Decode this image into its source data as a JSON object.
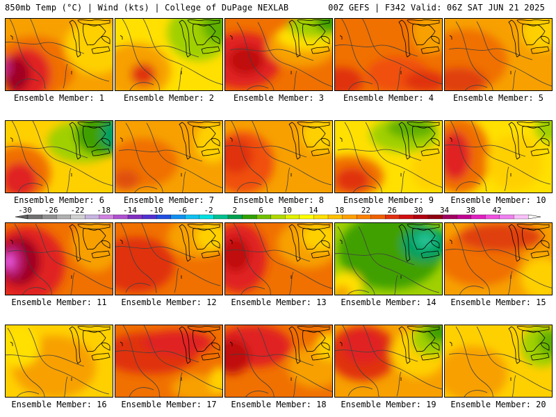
{
  "header": {
    "left": "850mb Temp (°C) | Wind (kts) | College of DuPage NEXLAB",
    "right": "00Z GEFS | F342 Valid: 06Z SAT JUN 21 2025"
  },
  "caption_prefix": "Ensemble Member:",
  "members": [
    {
      "id": "1",
      "bg": "#f7a000",
      "blobs": [
        [
          "#f07000",
          40,
          70,
          60,
          45
        ],
        [
          "#e02020",
          30,
          80,
          35,
          38
        ],
        [
          "#a00020",
          15,
          80,
          20,
          25
        ],
        [
          "#c02080",
          0,
          70,
          8,
          14
        ],
        [
          "#ffd000",
          130,
          40,
          45,
          40
        ]
      ]
    },
    {
      "id": "2",
      "bg": "#ffe000",
      "blobs": [
        [
          "#f7a000",
          30,
          75,
          50,
          40
        ],
        [
          "#e03010",
          40,
          80,
          18,
          16
        ],
        [
          "#a0d000",
          120,
          20,
          45,
          40
        ],
        [
          "#60b000",
          150,
          10,
          25,
          25
        ]
      ]
    },
    {
      "id": "3",
      "bg": "#f07000",
      "blobs": [
        [
          "#e02020",
          25,
          60,
          55,
          40
        ],
        [
          "#c01010",
          30,
          60,
          25,
          20
        ],
        [
          "#f7a000",
          110,
          40,
          50,
          30
        ],
        [
          "#ffe000",
          120,
          25,
          45,
          20
        ],
        [
          "#a0d000",
          130,
          10,
          40,
          18
        ],
        [
          "#40a000",
          150,
          5,
          20,
          15
        ]
      ]
    },
    {
      "id": "4",
      "bg": "#f07000",
      "blobs": [
        [
          "#e03010",
          10,
          90,
          30,
          20
        ],
        [
          "#f05010",
          90,
          80,
          45,
          25
        ],
        [
          "#f7a000",
          140,
          20,
          30,
          30
        ],
        [
          "#e03010",
          130,
          90,
          30,
          15
        ]
      ]
    },
    {
      "id": "5",
      "bg": "#f7a000",
      "blobs": [
        [
          "#f07000",
          30,
          60,
          60,
          45
        ],
        [
          "#e04010",
          20,
          90,
          40,
          20
        ],
        [
          "#ffd000",
          140,
          20,
          30,
          25
        ]
      ]
    },
    {
      "id": "6",
      "bg": "#ffd000",
      "blobs": [
        [
          "#f07000",
          20,
          75,
          45,
          40
        ],
        [
          "#e02020",
          20,
          85,
          25,
          25
        ],
        [
          "#a0d000",
          110,
          30,
          50,
          30
        ],
        [
          "#40a000",
          140,
          20,
          40,
          30
        ],
        [
          "#00a060",
          155,
          20,
          18,
          20
        ]
      ]
    },
    {
      "id": "7",
      "bg": "#f7a000",
      "blobs": [
        [
          "#f07000",
          40,
          60,
          50,
          35
        ],
        [
          "#e05010",
          15,
          85,
          20,
          15
        ],
        [
          "#ffd000",
          140,
          30,
          25,
          30
        ]
      ]
    },
    {
      "id": "8",
      "bg": "#f7a000",
      "blobs": [
        [
          "#f05010",
          25,
          60,
          45,
          45
        ],
        [
          "#e03010",
          15,
          50,
          25,
          25
        ],
        [
          "#ffd000",
          140,
          20,
          30,
          25
        ]
      ]
    },
    {
      "id": "9",
      "bg": "#ffe000",
      "blobs": [
        [
          "#f07000",
          20,
          80,
          50,
          30
        ],
        [
          "#e03010",
          25,
          85,
          25,
          18
        ],
        [
          "#a0d000",
          100,
          20,
          50,
          25
        ],
        [
          "#60b000",
          110,
          10,
          35,
          15
        ],
        [
          "#ffd000",
          140,
          70,
          30,
          30
        ]
      ]
    },
    {
      "id": "10",
      "bg": "#ffe000",
      "blobs": [
        [
          "#f07000",
          20,
          50,
          45,
          55
        ],
        [
          "#e02020",
          15,
          50,
          22,
          35
        ],
        [
          "#ffd000",
          100,
          60,
          40,
          40
        ],
        [
          "#a0d000",
          150,
          10,
          20,
          20
        ]
      ]
    },
    {
      "id": "11",
      "bg": "#f07000",
      "blobs": [
        [
          "#e02020",
          30,
          60,
          55,
          55
        ],
        [
          "#a00020",
          20,
          55,
          30,
          35
        ],
        [
          "#c02080",
          10,
          55,
          15,
          22
        ],
        [
          "#f060f0",
          5,
          55,
          6,
          10
        ],
        [
          "#f7a000",
          130,
          30,
          35,
          40
        ]
      ]
    },
    {
      "id": "12",
      "bg": "#f07000",
      "blobs": [
        [
          "#e03010",
          30,
          60,
          55,
          40
        ],
        [
          "#f7a000",
          120,
          20,
          45,
          30
        ],
        [
          "#ffd000",
          140,
          20,
          25,
          20
        ]
      ]
    },
    {
      "id": "13",
      "bg": "#f07000",
      "blobs": [
        [
          "#e02020",
          20,
          50,
          40,
          50
        ],
        [
          "#c01010",
          15,
          45,
          20,
          25
        ],
        [
          "#f7a000",
          120,
          30,
          45,
          35
        ],
        [
          "#ffd000",
          140,
          20,
          30,
          20
        ]
      ]
    },
    {
      "id": "14",
      "bg": "#a0d000",
      "blobs": [
        [
          "#40a000",
          80,
          40,
          75,
          55
        ],
        [
          "#00a060",
          130,
          30,
          35,
          25
        ],
        [
          "#20c090",
          130,
          25,
          15,
          12
        ],
        [
          "#ffe000",
          15,
          90,
          25,
          20
        ],
        [
          "#f7a000",
          10,
          100,
          12,
          10
        ]
      ]
    },
    {
      "id": "15",
      "bg": "#f7a000",
      "blobs": [
        [
          "#f07000",
          50,
          50,
          60,
          40
        ],
        [
          "#e04010",
          80,
          20,
          60,
          20
        ],
        [
          "#ffd000",
          140,
          80,
          30,
          30
        ]
      ]
    },
    {
      "id": "16",
      "bg": "#ffd000",
      "blobs": [
        [
          "#f7a000",
          70,
          60,
          60,
          45
        ],
        [
          "#ffe000",
          20,
          30,
          30,
          30
        ]
      ]
    },
    {
      "id": "17",
      "bg": "#f07000",
      "blobs": [
        [
          "#e03010",
          50,
          40,
          70,
          30
        ],
        [
          "#e02020",
          90,
          25,
          50,
          18
        ],
        [
          "#f7a000",
          120,
          90,
          40,
          20
        ],
        [
          "#ffd000",
          150,
          80,
          15,
          20
        ]
      ]
    },
    {
      "id": "18",
      "bg": "#f07000",
      "blobs": [
        [
          "#e02020",
          40,
          30,
          55,
          30
        ],
        [
          "#c01010",
          10,
          45,
          25,
          25
        ],
        [
          "#f7a000",
          130,
          60,
          40,
          30
        ],
        [
          "#ffd000",
          150,
          30,
          20,
          20
        ]
      ]
    },
    {
      "id": "19",
      "bg": "#f7a000",
      "blobs": [
        [
          "#e03010",
          40,
          40,
          50,
          40
        ],
        [
          "#e02020",
          40,
          30,
          30,
          25
        ],
        [
          "#ffd000",
          120,
          40,
          40,
          35
        ],
        [
          "#a0d000",
          140,
          20,
          30,
          25
        ],
        [
          "#40a000",
          150,
          10,
          20,
          15
        ]
      ]
    },
    {
      "id": "20",
      "bg": "#ffd000",
      "blobs": [
        [
          "#f7a000",
          40,
          70,
          50,
          40
        ],
        [
          "#a0d000",
          140,
          30,
          30,
          30
        ],
        [
          "#60b000",
          150,
          25,
          15,
          20
        ]
      ]
    }
  ],
  "colorbar": {
    "ticks": [
      "-30",
      "-26",
      "-22",
      "-18",
      "-14",
      "-10",
      "-6",
      "-2",
      "2",
      "6",
      "10",
      "14",
      "18",
      "22",
      "26",
      "30",
      "34",
      "38",
      "42"
    ],
    "colors": [
      "#707070",
      "#909090",
      "#b0b0b0",
      "#d0d0d0",
      "#c8b4e0",
      "#d080e0",
      "#b050d0",
      "#8030c0",
      "#5030d0",
      "#2050e0",
      "#1090f0",
      "#10c0f0",
      "#00e0e0",
      "#00c090",
      "#00a050",
      "#30a000",
      "#70c000",
      "#b0d800",
      "#e0f000",
      "#ffff00",
      "#ffe000",
      "#ffc000",
      "#ffa000",
      "#ff8000",
      "#f06000",
      "#e03010",
      "#d01010",
      "#b00010",
      "#900010",
      "#a00060",
      "#c00090",
      "#e020c0",
      "#f050e0",
      "#f080f0",
      "#f8c0f8"
    ]
  }
}
